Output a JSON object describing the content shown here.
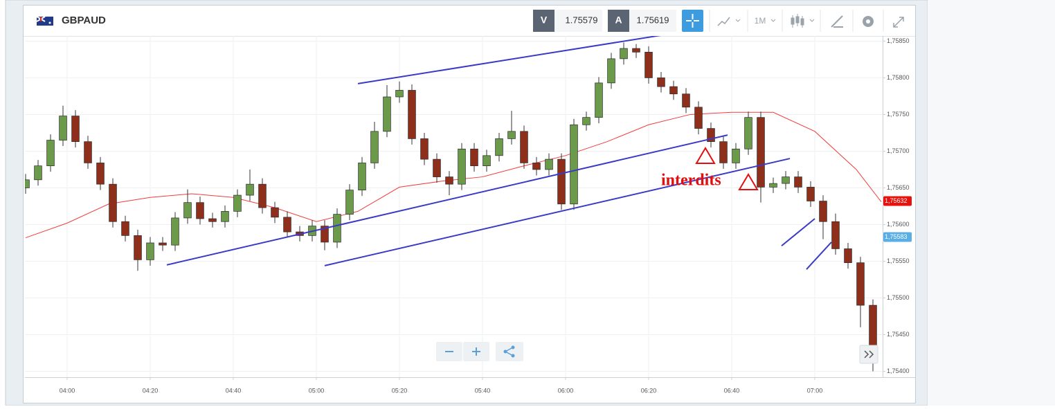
{
  "chart_data": {
    "type": "candlestick",
    "title": "GBPAUD",
    "bid_label": "V",
    "bid": 1.75579,
    "ask_label": "A",
    "ask": 1.75619,
    "timeframe": "1M",
    "annotation": "interdits",
    "x": [
      "03:50",
      "03:53",
      "03:56",
      "03:59",
      "04:02",
      "04:05",
      "04:08",
      "04:11",
      "04:14",
      "04:17",
      "04:20",
      "04:23",
      "04:26",
      "04:29",
      "04:32",
      "04:35",
      "04:38",
      "04:41",
      "04:44",
      "04:47",
      "04:50",
      "04:53",
      "04:56",
      "04:59",
      "05:02",
      "05:05",
      "05:08",
      "05:11",
      "05:14",
      "05:17",
      "05:20",
      "05:23",
      "05:26",
      "05:29",
      "05:32",
      "05:35",
      "05:38",
      "05:41",
      "05:44",
      "05:47",
      "05:50",
      "05:53",
      "05:56",
      "05:59",
      "06:02",
      "06:05",
      "06:08",
      "06:11",
      "06:14",
      "06:17",
      "06:20",
      "06:23",
      "06:26",
      "06:29",
      "06:32",
      "06:35",
      "06:38",
      "06:41",
      "06:44",
      "06:47",
      "06:50",
      "06:53",
      "06:56",
      "06:59",
      "07:02",
      "07:05",
      "07:08",
      "07:11",
      "07:14"
    ],
    "open": [
      1.7565,
      1.75661,
      1.7568,
      1.75715,
      1.75748,
      1.75713,
      1.75684,
      1.75655,
      1.75604,
      1.75585,
      1.75552,
      1.75575,
      1.75572,
      1.75609,
      1.7563,
      1.75608,
      1.75604,
      1.75618,
      1.7564,
      1.75655,
      1.75623,
      1.7561,
      1.7559,
      1.75585,
      1.75598,
      1.75576,
      1.75614,
      1.75647,
      1.75684,
      1.75727,
      1.75774,
      1.75783,
      1.75717,
      1.75689,
      1.75665,
      1.75655,
      1.75703,
      1.7568,
      1.75694,
      1.75717,
      1.75727,
      1.75684,
      1.75675,
      1.75689,
      1.75628,
      1.75736,
      1.75746,
      1.75793,
      1.75826,
      1.7584,
      1.75835,
      1.758,
      1.75788,
      1.75778,
      1.7576,
      1.75731,
      1.75713,
      1.75684,
      1.75703,
      1.75746,
      1.75651,
      1.75656,
      1.75665,
      1.75651,
      1.75632,
      1.75604,
      1.75567,
      1.75548,
      1.7549
    ],
    "high": [
      1.75669,
      1.75688,
      1.75723,
      1.75762,
      1.75756,
      1.75721,
      1.75692,
      1.75663,
      1.75612,
      1.75593,
      1.75583,
      1.75583,
      1.75617,
      1.75648,
      1.75638,
      1.75616,
      1.75626,
      1.75648,
      1.75675,
      1.75663,
      1.75631,
      1.75618,
      1.75598,
      1.75606,
      1.75606,
      1.75622,
      1.75655,
      1.75692,
      1.7574,
      1.7579,
      1.75795,
      1.75791,
      1.75725,
      1.75697,
      1.75673,
      1.75711,
      1.75711,
      1.75702,
      1.75725,
      1.75755,
      1.75735,
      1.75692,
      1.75697,
      1.75697,
      1.75744,
      1.75754,
      1.75801,
      1.75834,
      1.75848,
      1.75846,
      1.75843,
      1.75808,
      1.75796,
      1.75786,
      1.75768,
      1.75739,
      1.75721,
      1.75711,
      1.75754,
      1.75754,
      1.75664,
      1.75673,
      1.75673,
      1.75659,
      1.7564,
      1.75615,
      1.75575,
      1.75556,
      1.75498
    ],
    "low": [
      1.75642,
      1.75653,
      1.75672,
      1.75707,
      1.75705,
      1.75676,
      1.75647,
      1.75596,
      1.75577,
      1.75537,
      1.75544,
      1.75564,
      1.75564,
      1.75601,
      1.756,
      1.75596,
      1.75596,
      1.7561,
      1.75632,
      1.75615,
      1.75602,
      1.75582,
      1.75577,
      1.75577,
      1.75565,
      1.75568,
      1.75606,
      1.75639,
      1.75676,
      1.75719,
      1.75766,
      1.75709,
      1.75681,
      1.75657,
      1.7564,
      1.75647,
      1.75672,
      1.75672,
      1.75686,
      1.75709,
      1.75676,
      1.75667,
      1.75667,
      1.7562,
      1.7562,
      1.75728,
      1.75738,
      1.75785,
      1.75818,
      1.75827,
      1.75792,
      1.7578,
      1.7577,
      1.75752,
      1.75723,
      1.75705,
      1.75676,
      1.75676,
      1.75695,
      1.7563,
      1.75643,
      1.75648,
      1.75643,
      1.75624,
      1.7558,
      1.75559,
      1.7554,
      1.7546,
      1.754
    ],
    "close": [
      1.75661,
      1.7568,
      1.75715,
      1.75748,
      1.75713,
      1.75684,
      1.75655,
      1.75604,
      1.75585,
      1.75552,
      1.75575,
      1.75572,
      1.75609,
      1.7563,
      1.75608,
      1.75604,
      1.75618,
      1.7564,
      1.75655,
      1.75623,
      1.7561,
      1.7559,
      1.75585,
      1.75598,
      1.75576,
      1.75614,
      1.75647,
      1.75684,
      1.75727,
      1.75774,
      1.75783,
      1.75717,
      1.75689,
      1.75665,
      1.75655,
      1.75703,
      1.7568,
      1.75694,
      1.75717,
      1.75727,
      1.75684,
      1.75675,
      1.75689,
      1.75628,
      1.75736,
      1.75746,
      1.75793,
      1.75826,
      1.7584,
      1.75835,
      1.758,
      1.75788,
      1.75778,
      1.7576,
      1.75731,
      1.75713,
      1.75684,
      1.75703,
      1.75746,
      1.75651,
      1.75656,
      1.75665,
      1.75651,
      1.75632,
      1.75604,
      1.75567,
      1.75548,
      1.7549,
      1.75416
    ],
    "up_color": "#6a9a4a",
    "down_color": "#8e2f1c",
    "ma": {
      "color": "#f23c3c",
      "x": [
        "03:50",
        "04:00",
        "04:10",
        "04:20",
        "04:30",
        "04:40",
        "04:50",
        "05:00",
        "05:10",
        "05:20",
        "05:30",
        "05:40",
        "05:50",
        "06:00",
        "06:10",
        "06:20",
        "06:30",
        "06:40",
        "06:50",
        "07:00",
        "07:10",
        "07:16"
      ],
      "values": [
        1.75582,
        1.75602,
        1.75628,
        1.75637,
        1.75642,
        1.75637,
        1.75623,
        1.75604,
        1.75618,
        1.75651,
        1.75659,
        1.75665,
        1.7568,
        1.75694,
        1.75713,
        1.75736,
        1.7575,
        1.75753,
        1.75753,
        1.75727,
        1.75675,
        1.75631
      ]
    },
    "trendlines": [
      {
        "color": "#3a3ac6",
        "x": [
          "05:10",
          "06:23"
        ],
        "values": [
          1.75792,
          1.75858
        ]
      },
      {
        "color": "#3a3ac6",
        "x": [
          "04:24",
          "06:39"
        ],
        "values": [
          1.75545,
          1.75722
        ]
      },
      {
        "color": "#3a3ac6",
        "x": [
          "05:02",
          "06:54"
        ],
        "values": [
          1.75544,
          1.7569
        ]
      },
      {
        "color": "#3a3ac6",
        "x": [
          "06:52",
          "07:00"
        ],
        "values": [
          1.75571,
          1.75608
        ]
      },
      {
        "color": "#3a3ac6",
        "x": [
          "06:58",
          "07:04"
        ],
        "values": [
          1.75539,
          1.75576
        ]
      }
    ],
    "price_labels": [
      {
        "value": 1.75632,
        "label": "1,75632",
        "color": "#e8120c"
      },
      {
        "value": 1.75583,
        "label": "1,75583",
        "color": "#5aaee6"
      }
    ],
    "xlim": [
      "03:50",
      "07:16"
    ],
    "xticks": [
      "04:00",
      "04:20",
      "04:40",
      "05:00",
      "05:20",
      "05:40",
      "06:00",
      "06:20",
      "06:40",
      "07:00"
    ],
    "ylim": [
      1.75392,
      1.75857
    ],
    "yticks": [
      {
        "value": 1.754,
        "label": "1,75400"
      },
      {
        "value": 1.7545,
        "label": "1,75450"
      },
      {
        "value": 1.755,
        "label": "1,75500"
      },
      {
        "value": 1.7555,
        "label": "1,75550"
      },
      {
        "value": 1.756,
        "label": "1,75600"
      },
      {
        "value": 1.7565,
        "label": "1,75650"
      },
      {
        "value": 1.757,
        "label": "1,75700"
      },
      {
        "value": 1.7575,
        "label": "1,75750"
      },
      {
        "value": 1.758,
        "label": "1,75800"
      },
      {
        "value": 1.7585,
        "label": "1,75850"
      }
    ],
    "grid": true
  }
}
